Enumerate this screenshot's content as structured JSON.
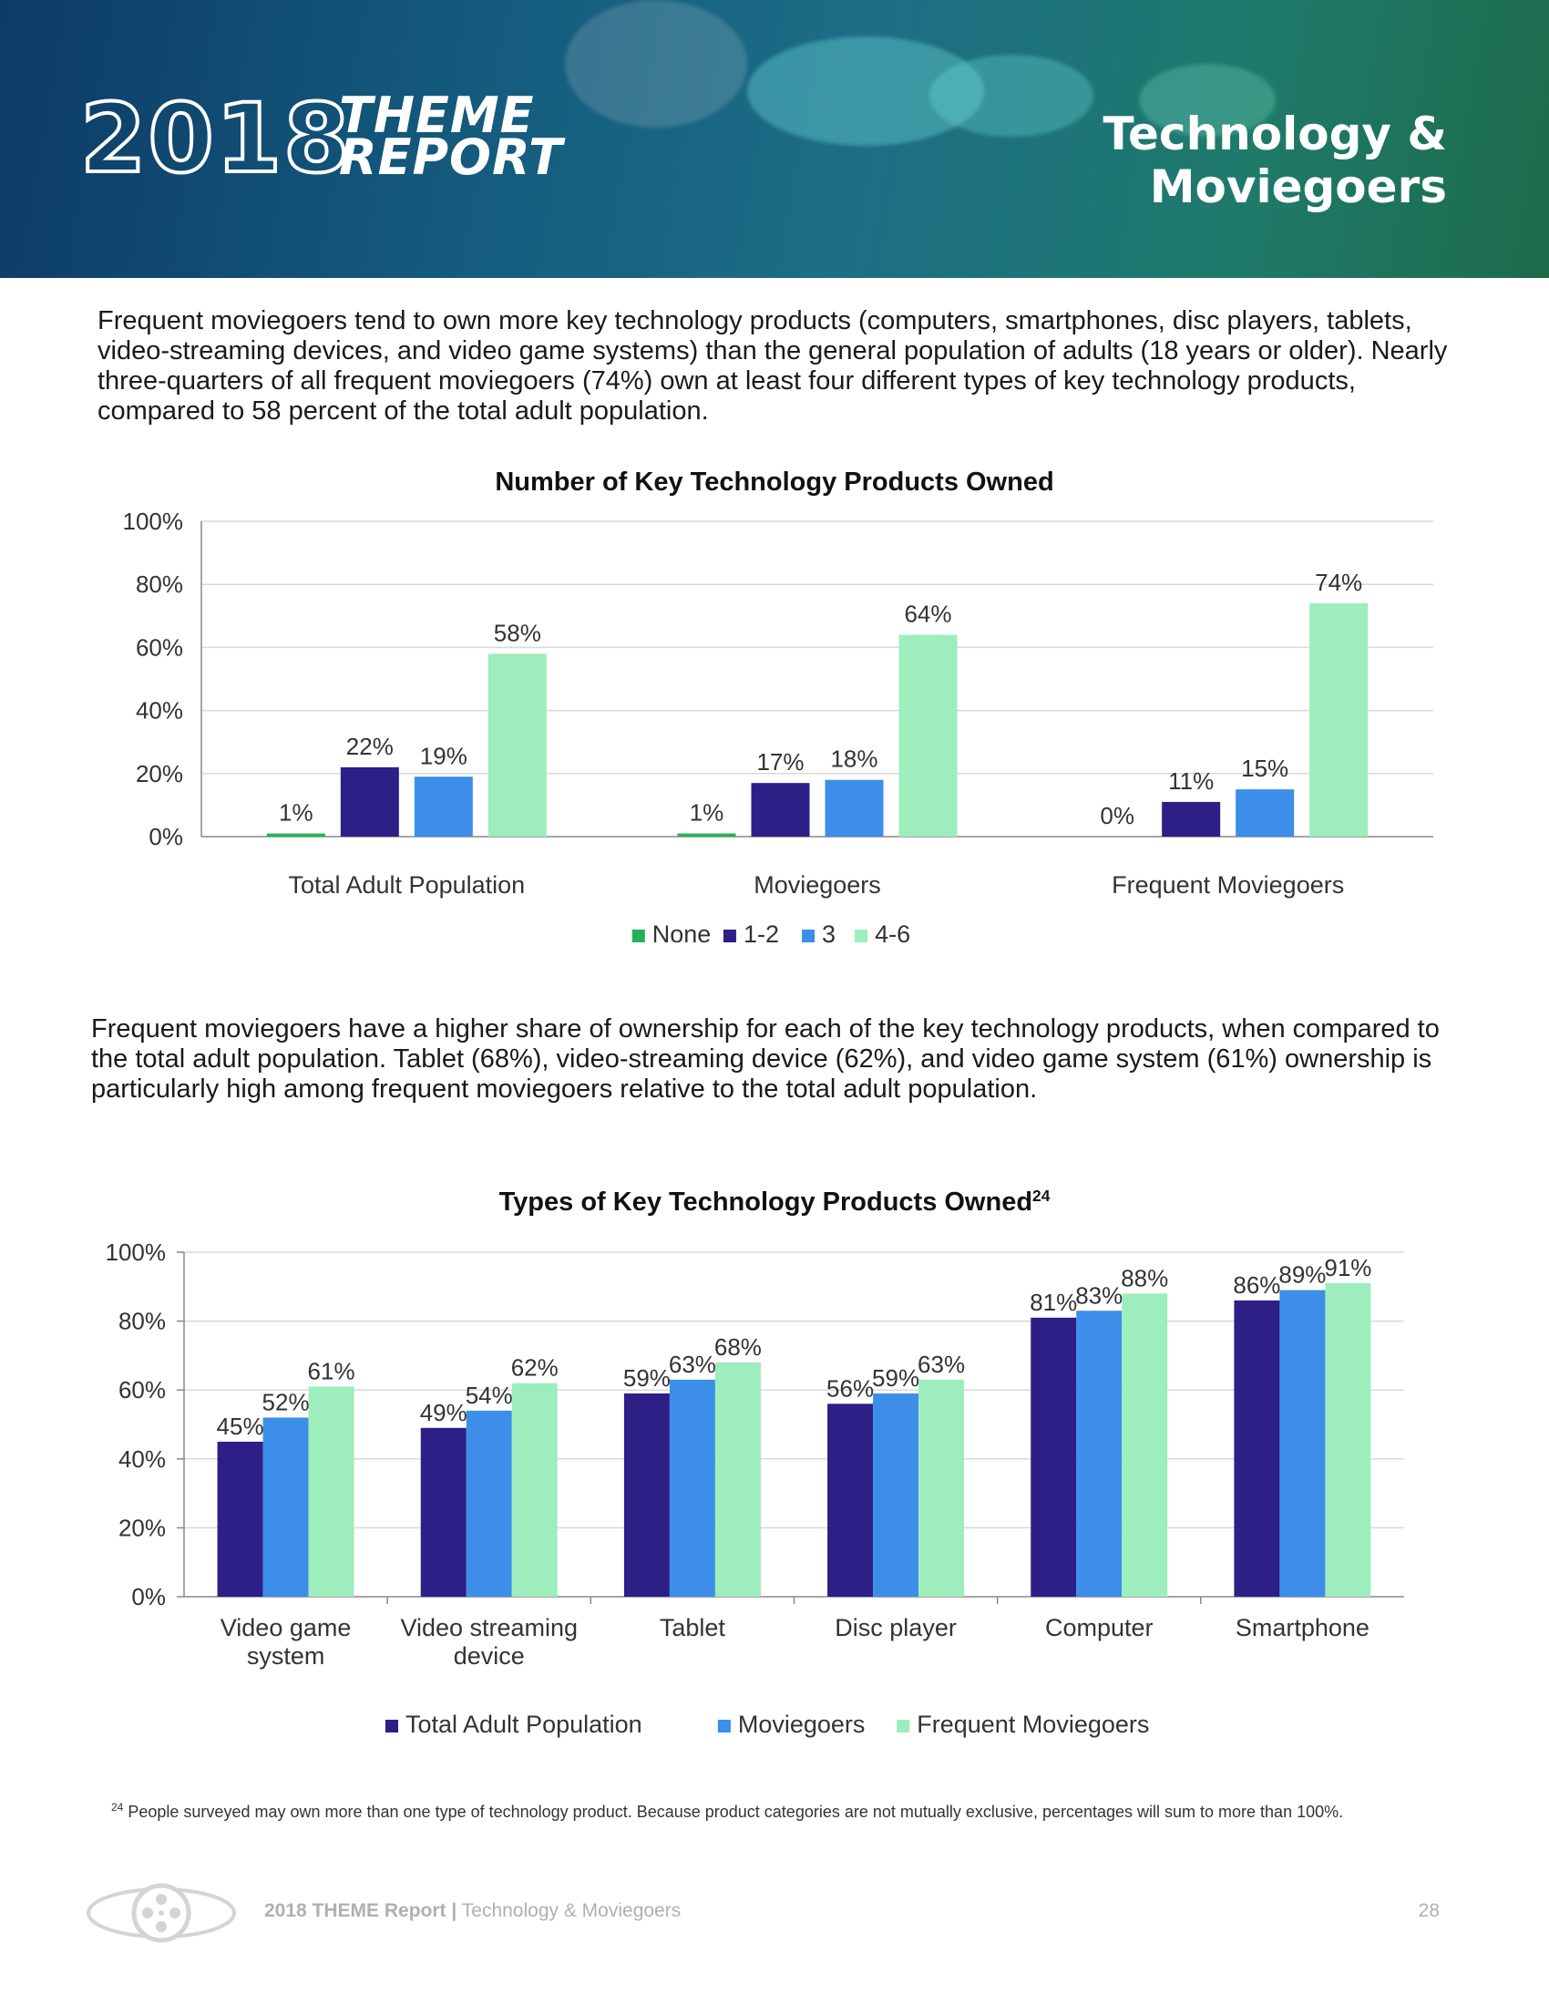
{
  "header": {
    "logo_year": "2018",
    "logo_line1": "THEME",
    "logo_line2": "REPORT",
    "section_title_line1": "Technology &",
    "section_title_line2": "Moviegoers"
  },
  "paragraphs": {
    "intro": "Frequent moviegoers tend to own more key technology products (computers, smartphones, disc players, tablets, video-streaming devices, and video game systems) than the general population of adults (18 years or older). Nearly three-quarters of all frequent moviegoers (74%) own at least four different types of key technology products, compared to 58 percent of the total adult population.",
    "second": "Frequent moviegoers have a higher share of ownership for each of the key technology products, when compared to the total adult population. Tablet (68%), video-streaming device (62%), and video game system (61%) ownership is particularly high among frequent moviegoers relative to the total adult population."
  },
  "chart_data": [
    {
      "type": "bar",
      "title": "Number of Key Technology Products Owned",
      "categories": [
        "Total Adult Population",
        "Moviegoers",
        "Frequent Moviegoers"
      ],
      "series": [
        {
          "name": "None",
          "color": "#21b25b",
          "values": [
            1,
            1,
            0
          ]
        },
        {
          "name": "1-2",
          "color": "#2c1f86",
          "values": [
            22,
            17,
            11
          ]
        },
        {
          "name": "3",
          "color": "#3c8ee8",
          "values": [
            19,
            18,
            15
          ]
        },
        {
          "name": "4-6",
          "color": "#9eedbd",
          "values": [
            58,
            64,
            74
          ]
        }
      ],
      "ylim": [
        0,
        100
      ],
      "yticks": [
        "0%",
        "20%",
        "40%",
        "60%",
        "80%",
        "100%"
      ],
      "gridlines": true,
      "legend": "bottom-center",
      "xlabel": "",
      "ylabel": ""
    },
    {
      "type": "bar",
      "title": "Types of Key Technology Products Owned",
      "title_superscript": "24",
      "categories": [
        "Video game system",
        "Video streaming device",
        "Tablet",
        "Disc player",
        "Computer",
        "Smartphone"
      ],
      "category_lines": [
        [
          "Video game",
          "system"
        ],
        [
          "Video streaming",
          "device"
        ],
        [
          "Tablet"
        ],
        [
          "Disc player"
        ],
        [
          "Computer"
        ],
        [
          "Smartphone"
        ]
      ],
      "series": [
        {
          "name": "Total Adult Population",
          "color": "#2c1f86",
          "values": [
            45,
            49,
            59,
            56,
            81,
            86
          ]
        },
        {
          "name": "Moviegoers",
          "color": "#3c8ee8",
          "values": [
            52,
            54,
            63,
            59,
            83,
            89
          ]
        },
        {
          "name": "Frequent Moviegoers",
          "color": "#9eedbd",
          "values": [
            61,
            62,
            68,
            63,
            88,
            91
          ]
        }
      ],
      "ylim": [
        0,
        100
      ],
      "yticks": [
        "0%",
        "20%",
        "40%",
        "60%",
        "80%",
        "100%"
      ],
      "gridlines": true,
      "legend": "bottom-center",
      "xlabel": "",
      "ylabel": ""
    }
  ],
  "footnote": {
    "marker": "24",
    "text": "People surveyed may own more than one type of technology product. Because product categories are not mutually exclusive, percentages will sum to more than 100%."
  },
  "footer": {
    "report_name": "2018 THEME Report",
    "separator": "|",
    "section": "Technology & Moviegoers",
    "page_number": "28"
  },
  "colors": {
    "header_start": "#0d3b66",
    "header_end": "#1d6b4a"
  }
}
